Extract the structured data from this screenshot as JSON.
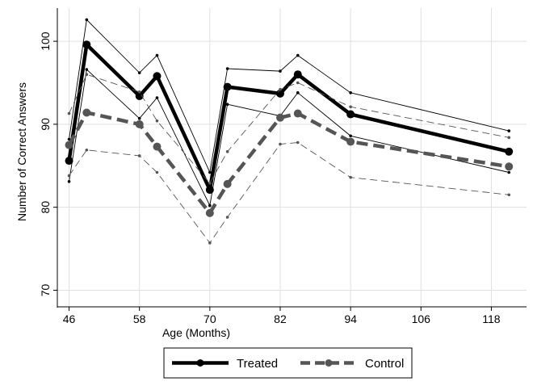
{
  "chart_data": {
    "type": "line",
    "xlabel": "Age (Months)",
    "ylabel": "Number of Correct Answers",
    "xlim": [
      44,
      124
    ],
    "ylim": [
      68,
      104
    ],
    "xticks": [
      46,
      58,
      70,
      82,
      94,
      106,
      118
    ],
    "yticks": [
      70,
      80,
      90,
      100
    ],
    "grid": true,
    "legend_position": "bottom",
    "colors": {
      "treated": "#000000",
      "control": "#555555",
      "grid": "#e0e0e0"
    },
    "series": [
      {
        "name": "Treated",
        "key": "treated",
        "x": [
          46,
          49,
          58,
          61,
          70,
          73,
          82,
          85,
          94,
          121
        ],
        "values": [
          85.6,
          99.6,
          93.4,
          95.8,
          82.1,
          94.5,
          93.7,
          96.0,
          91.2,
          86.7
        ],
        "ci_upper": [
          88.2,
          102.6,
          96.2,
          98.3,
          84.2,
          96.7,
          96.4,
          98.3,
          93.8,
          89.2
        ],
        "ci_lower": [
          83.1,
          96.6,
          90.7,
          93.2,
          80.2,
          92.4,
          91.0,
          93.8,
          88.6,
          84.2
        ]
      },
      {
        "name": "Control",
        "key": "control",
        "x": [
          46,
          49,
          58,
          61,
          70,
          73,
          82,
          85,
          94,
          121
        ],
        "values": [
          87.5,
          91.4,
          90.0,
          87.3,
          79.3,
          82.8,
          90.8,
          91.3,
          87.9,
          84.9
        ],
        "ci_upper": [
          91.3,
          96.0,
          93.9,
          90.4,
          82.9,
          86.7,
          94.2,
          95.0,
          92.1,
          88.4
        ],
        "ci_lower": [
          83.8,
          86.9,
          86.2,
          84.2,
          75.7,
          78.8,
          87.6,
          87.8,
          83.6,
          81.5
        ]
      }
    ]
  }
}
